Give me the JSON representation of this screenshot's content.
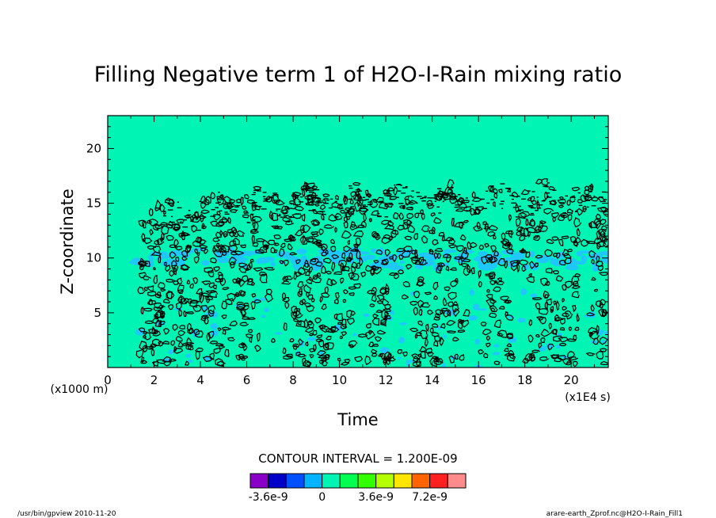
{
  "chart_data": {
    "type": "heatmap",
    "title": "Filling Negative term 1 of H2O-I-Rain mixing ratio",
    "xlabel": "Time",
    "ylabel": "Z-coordinate",
    "x_unit": "(x1E4 s)",
    "y_unit": "(x1000 m)",
    "xlim": [
      0,
      21.6
    ],
    "ylim": [
      0,
      23
    ],
    "x_ticks": [
      0,
      2,
      4,
      6,
      8,
      10,
      12,
      14,
      16,
      18,
      20
    ],
    "y_ticks": [
      5,
      10,
      15,
      20
    ],
    "background_level": 0,
    "background_color": "#00f5b4",
    "negative_band_color": "#1ec8ff",
    "contour_color": "#000000",
    "active_region": {
      "x_start": 1.2,
      "z_top": 16.5,
      "band_z": 10
    },
    "contour_interval_label": "CONTOUR INTERVAL = 1.200E-09",
    "colorbar": {
      "colors": [
        "#8a00c8",
        "#0000c8",
        "#0050ff",
        "#00b4ff",
        "#00f5b4",
        "#00ff50",
        "#32ff00",
        "#b4ff00",
        "#ffe600",
        "#ff6400",
        "#ff2020",
        "#ff8c8c"
      ],
      "labels": [
        {
          "text": "-3.6e-9",
          "at": 1
        },
        {
          "text": "0",
          "at": 4
        },
        {
          "text": "3.6e-9",
          "at": 7
        },
        {
          "text": "7.2e-9",
          "at": 10
        }
      ]
    }
  },
  "footer": {
    "left": "/usr/bin/gpview  2010-11-20",
    "right": "arare-earth_Zprof.nc@H2O-I-Rain_Fill1"
  }
}
